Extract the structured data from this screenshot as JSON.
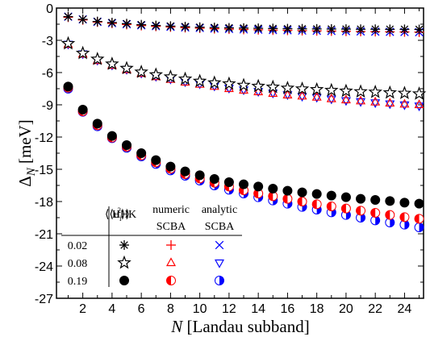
{
  "chart_data": {
    "type": "scatter",
    "xlabel_symbol": "N",
    "xlabel_rest": " [Landau subband]",
    "ylabel_main": "Δ",
    "ylabel_sub": "N",
    "ylabel_rest": " [meV]",
    "xlim": [
      0.2,
      25.3
    ],
    "ylim": [
      -27,
      0
    ],
    "x_ticks": [
      2,
      4,
      6,
      8,
      10,
      12,
      14,
      16,
      18,
      20,
      22,
      24
    ],
    "y_ticks": [
      0,
      -3,
      -6,
      -9,
      -12,
      -15,
      -18,
      -21,
      -24,
      -27
    ],
    "x": [
      1,
      2,
      3,
      4,
      5,
      6,
      7,
      8,
      9,
      10,
      11,
      12,
      13,
      14,
      15,
      16,
      17,
      18,
      19,
      20,
      21,
      22,
      23,
      24,
      25
    ],
    "series": [
      {
        "method": "HHK",
        "u2": "0.02",
        "marker": "asterisk",
        "color": "#000000",
        "values": [
          -0.8,
          -1.05,
          -1.25,
          -1.35,
          -1.45,
          -1.55,
          -1.62,
          -1.68,
          -1.73,
          -1.78,
          -1.81,
          -1.84,
          -1.86,
          -1.88,
          -1.9,
          -1.92,
          -1.93,
          -1.94,
          -1.95,
          -1.96,
          -1.97,
          -1.97,
          -1.98,
          -1.98,
          -1.99
        ]
      },
      {
        "method": "HHK",
        "u2": "0.08",
        "marker": "star",
        "color": "#000000",
        "values": [
          -3.3,
          -4.2,
          -4.75,
          -5.2,
          -5.6,
          -5.95,
          -6.2,
          -6.4,
          -6.6,
          -6.8,
          -6.95,
          -7.05,
          -7.18,
          -7.27,
          -7.35,
          -7.45,
          -7.52,
          -7.58,
          -7.65,
          -7.72,
          -7.78,
          -7.82,
          -7.88,
          -7.92,
          -7.98
        ]
      },
      {
        "method": "HHK",
        "u2": "0.19",
        "marker": "filled-circle",
        "color": "#000000",
        "values": [
          -7.3,
          -9.45,
          -10.75,
          -11.9,
          -12.75,
          -13.5,
          -14.15,
          -14.75,
          -15.2,
          -15.55,
          -15.9,
          -16.2,
          -16.4,
          -16.6,
          -16.8,
          -17.0,
          -17.15,
          -17.3,
          -17.45,
          -17.6,
          -17.75,
          -17.85,
          -17.95,
          -18.1,
          -18.2
        ]
      },
      {
        "method": "numeric SCBA",
        "u2": "0.02",
        "marker": "plus",
        "color": "#ff0000",
        "values": [
          -0.85,
          -1.1,
          -1.3,
          -1.42,
          -1.53,
          -1.63,
          -1.7,
          -1.76,
          -1.82,
          -1.87,
          -1.92,
          -1.96,
          -1.99,
          -2.02,
          -2.05,
          -2.07,
          -2.1,
          -2.12,
          -2.14,
          -2.16,
          -2.18,
          -2.19,
          -2.21,
          -2.22,
          -2.24
        ]
      },
      {
        "method": "numeric SCBA",
        "u2": "0.08",
        "marker": "triangle-up",
        "color": "#ff0000",
        "values": [
          -3.4,
          -4.3,
          -4.9,
          -5.35,
          -5.75,
          -6.1,
          -6.4,
          -6.65,
          -6.9,
          -7.1,
          -7.3,
          -7.5,
          -7.65,
          -7.8,
          -7.95,
          -8.1,
          -8.2,
          -8.3,
          -8.45,
          -8.55,
          -8.65,
          -8.75,
          -8.85,
          -8.95,
          -9.0
        ]
      },
      {
        "method": "numeric SCBA",
        "u2": "0.19",
        "marker": "half-circle-left",
        "color": "#ff0000",
        "values": [
          -7.4,
          -9.6,
          -10.9,
          -12.05,
          -12.9,
          -13.7,
          -14.35,
          -14.95,
          -15.45,
          -15.85,
          -16.25,
          -16.6,
          -16.95,
          -17.25,
          -17.5,
          -17.75,
          -18.0,
          -18.25,
          -18.45,
          -18.65,
          -18.85,
          -19.05,
          -19.25,
          -19.45,
          -19.6
        ]
      },
      {
        "method": "analytic SCBA",
        "u2": "0.02",
        "marker": "cross",
        "color": "#0000ff",
        "values": [
          -0.8,
          -1.05,
          -1.28,
          -1.4,
          -1.5,
          -1.6,
          -1.68,
          -1.74,
          -1.8,
          -1.85,
          -1.9,
          -1.94,
          -1.98,
          -2.01,
          -2.04,
          -2.06,
          -2.09,
          -2.11,
          -2.13,
          -2.15,
          -2.17,
          -2.19,
          -2.21,
          -2.22,
          -2.24
        ]
      },
      {
        "method": "analytic SCBA",
        "u2": "0.08",
        "marker": "triangle-down",
        "color": "#0000ff",
        "values": [
          -3.35,
          -4.25,
          -4.85,
          -5.3,
          -5.7,
          -6.05,
          -6.35,
          -6.6,
          -6.85,
          -7.05,
          -7.25,
          -7.45,
          -7.6,
          -7.75,
          -7.9,
          -8.05,
          -8.2,
          -8.3,
          -8.45,
          -8.6,
          -8.7,
          -8.8,
          -8.9,
          -9.0,
          -9.1
        ]
      },
      {
        "method": "analytic SCBA",
        "u2": "0.19",
        "marker": "half-circle-right",
        "color": "#0000ff",
        "values": [
          -7.5,
          -9.65,
          -11.0,
          -12.1,
          -13.0,
          -13.8,
          -14.5,
          -15.1,
          -15.6,
          -16.05,
          -16.5,
          -16.9,
          -17.25,
          -17.6,
          -17.9,
          -18.2,
          -18.5,
          -18.75,
          -19.0,
          -19.25,
          -19.5,
          -19.75,
          -19.95,
          -20.15,
          -20.4
        ]
      }
    ],
    "legend": {
      "header_u2_label": "⟨⟨u",
      "header_u2_sub": "i",
      "header_u2_sup": "2",
      "header_u2_close": "⟩⟩",
      "col_hhk": "HHK",
      "col_numeric_top": "numeric",
      "col_numeric_bottom": "SCBA",
      "col_analytic_top": "analytic",
      "col_analytic_bottom": "SCBA",
      "rows": [
        "0.02",
        "0.08",
        "0.19"
      ]
    },
    "grid": false
  }
}
